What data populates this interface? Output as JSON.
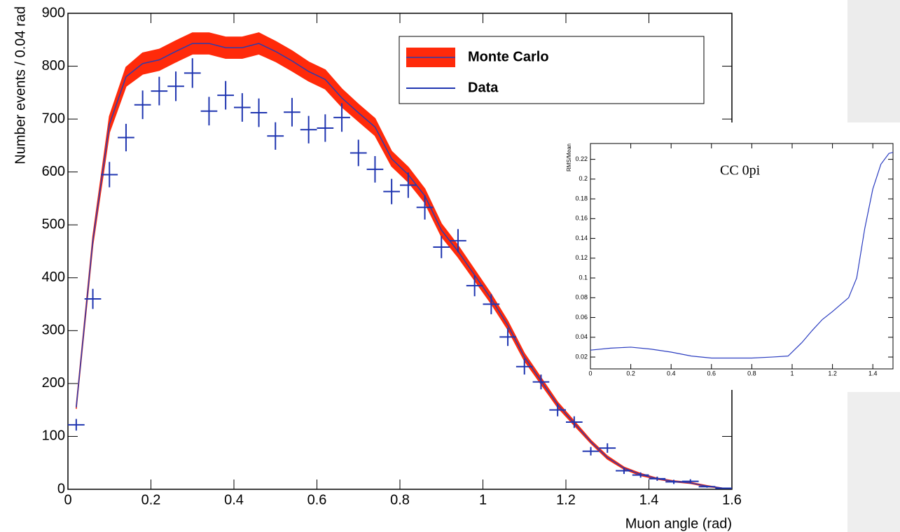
{
  "chart_data": [
    {
      "type": "line",
      "xlabel": "Muon angle (rad)",
      "ylabel": "Number events / 0.04 rad",
      "x": [
        0.02,
        0.06,
        0.1,
        0.14,
        0.18,
        0.22,
        0.26,
        0.3,
        0.34,
        0.38,
        0.42,
        0.46,
        0.5,
        0.54,
        0.58,
        0.62,
        0.66,
        0.7,
        0.74,
        0.78,
        0.82,
        0.86,
        0.9,
        0.94,
        0.98,
        1.02,
        1.06,
        1.1,
        1.14,
        1.18,
        1.22,
        1.26,
        1.3,
        1.34,
        1.38,
        1.42,
        1.46,
        1.5,
        1.54,
        1.58
      ],
      "series": [
        {
          "name": "Monte Carlo",
          "style": "band",
          "color": "#ff2a0a",
          "line_color": "#2a3cb0",
          "values": [
            155,
            470,
            690,
            780,
            805,
            812,
            828,
            843,
            843,
            835,
            835,
            843,
            828,
            810,
            790,
            775,
            740,
            712,
            685,
            625,
            595,
            555,
            490,
            450,
            405,
            360,
            310,
            250,
            205,
            160,
            125,
            90,
            60,
            40,
            28,
            20,
            15,
            12,
            6,
            2
          ],
          "errors": [
            3,
            8,
            15,
            18,
            20,
            20,
            20,
            20,
            20,
            20,
            20,
            20,
            19,
            19,
            18,
            18,
            17,
            16,
            16,
            14,
            14,
            13,
            12,
            11,
            10,
            9,
            8,
            7,
            6,
            5,
            4,
            3,
            3,
            2,
            2,
            1,
            1,
            1,
            1,
            0
          ]
        },
        {
          "name": "Data",
          "style": "points",
          "color": "#1f35b0",
          "values": [
            122,
            360,
            595,
            665,
            727,
            753,
            762,
            787,
            715,
            745,
            722,
            712,
            668,
            713,
            680,
            683,
            703,
            636,
            605,
            563,
            575,
            533,
            458,
            470,
            385,
            350,
            288,
            232,
            203,
            150,
            127,
            72,
            78,
            35,
            27,
            20,
            14,
            15,
            5,
            2
          ],
          "errors": [
            11,
            19,
            24,
            26,
            27,
            27,
            28,
            28,
            27,
            27,
            27,
            27,
            26,
            27,
            26,
            26,
            27,
            25,
            25,
            24,
            24,
            23,
            21,
            22,
            20,
            19,
            17,
            15,
            14,
            12,
            11,
            8,
            9,
            6,
            5,
            4,
            4,
            4,
            2,
            1
          ]
        }
      ],
      "xlim": [
        0,
        1.6
      ],
      "ylim": [
        0,
        900
      ],
      "xticks": [
        0,
        0.2,
        0.4,
        0.6,
        0.8,
        1,
        1.2,
        1.4,
        1.6
      ],
      "yticks": [
        0,
        100,
        200,
        300,
        400,
        500,
        600,
        700,
        800,
        900
      ]
    },
    {
      "type": "line",
      "ylabel": "RMS/Mean",
      "annotation": "CC 0pi",
      "x": [
        0,
        0.1,
        0.2,
        0.3,
        0.4,
        0.5,
        0.6,
        0.7,
        0.8,
        0.9,
        0.98,
        1.05,
        1.1,
        1.15,
        1.2,
        1.28,
        1.32,
        1.36,
        1.4,
        1.44,
        1.48,
        1.5
      ],
      "series": [
        {
          "color": "#2a3cc0",
          "values": [
            0.027,
            0.029,
            0.03,
            0.028,
            0.025,
            0.021,
            0.019,
            0.019,
            0.019,
            0.02,
            0.021,
            0.035,
            0.047,
            0.058,
            0.066,
            0.08,
            0.1,
            0.15,
            0.19,
            0.215,
            0.226,
            0.227
          ]
        }
      ],
      "xlim": [
        0,
        1.5
      ],
      "ylim": [
        0.008,
        0.236
      ],
      "xticks": [
        0,
        0.2,
        0.4,
        0.6,
        0.8,
        1,
        1.2,
        1.4
      ],
      "yticks": [
        0.02,
        0.04,
        0.06,
        0.08,
        0.1,
        0.12,
        0.14,
        0.16,
        0.18,
        0.2,
        0.22
      ]
    }
  ]
}
